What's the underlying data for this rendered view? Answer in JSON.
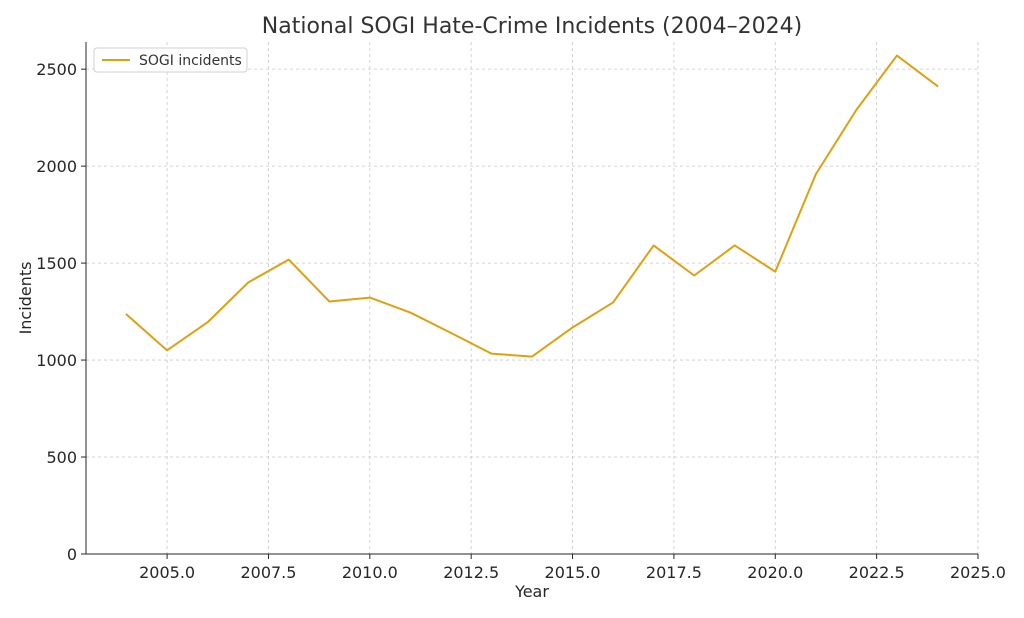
{
  "chart_data": {
    "type": "line",
    "title": "National SOGI Hate-Crime Incidents (2004–2024)",
    "xlabel": "Year",
    "ylabel": "Incidents",
    "xlim": [
      2003,
      2025
    ],
    "ylim": [
      0,
      2640
    ],
    "x_ticks": [
      2005.0,
      2007.5,
      2010.0,
      2012.5,
      2015.0,
      2017.5,
      2020.0,
      2022.5,
      2025.0
    ],
    "x_tick_labels": [
      "2005.0",
      "2007.5",
      "2010.0",
      "2012.5",
      "2015.0",
      "2017.5",
      "2020.0",
      "2022.5",
      "2025.0"
    ],
    "y_ticks": [
      0,
      500,
      1000,
      1500,
      2000,
      2500
    ],
    "y_tick_labels": [
      "0",
      "500",
      "1000",
      "1500",
      "2000",
      "2500"
    ],
    "grid": true,
    "legend_position": "upper-left",
    "series": [
      {
        "name": "SOGI incidents",
        "color": "#E0A010",
        "x": [
          2004,
          2005,
          2006,
          2007,
          2008,
          2009,
          2010,
          2011,
          2012,
          2013,
          2014,
          2015,
          2016,
          2017,
          2018,
          2019,
          2020,
          2021,
          2022,
          2023,
          2024
        ],
        "y": [
          1235,
          1050,
          1195,
          1400,
          1518,
          1302,
          1322,
          1245,
          1140,
          1033,
          1018,
          1168,
          1297,
          1591,
          1436,
          1591,
          1456,
          1958,
          2290,
          2570,
          2413
        ]
      }
    ]
  }
}
